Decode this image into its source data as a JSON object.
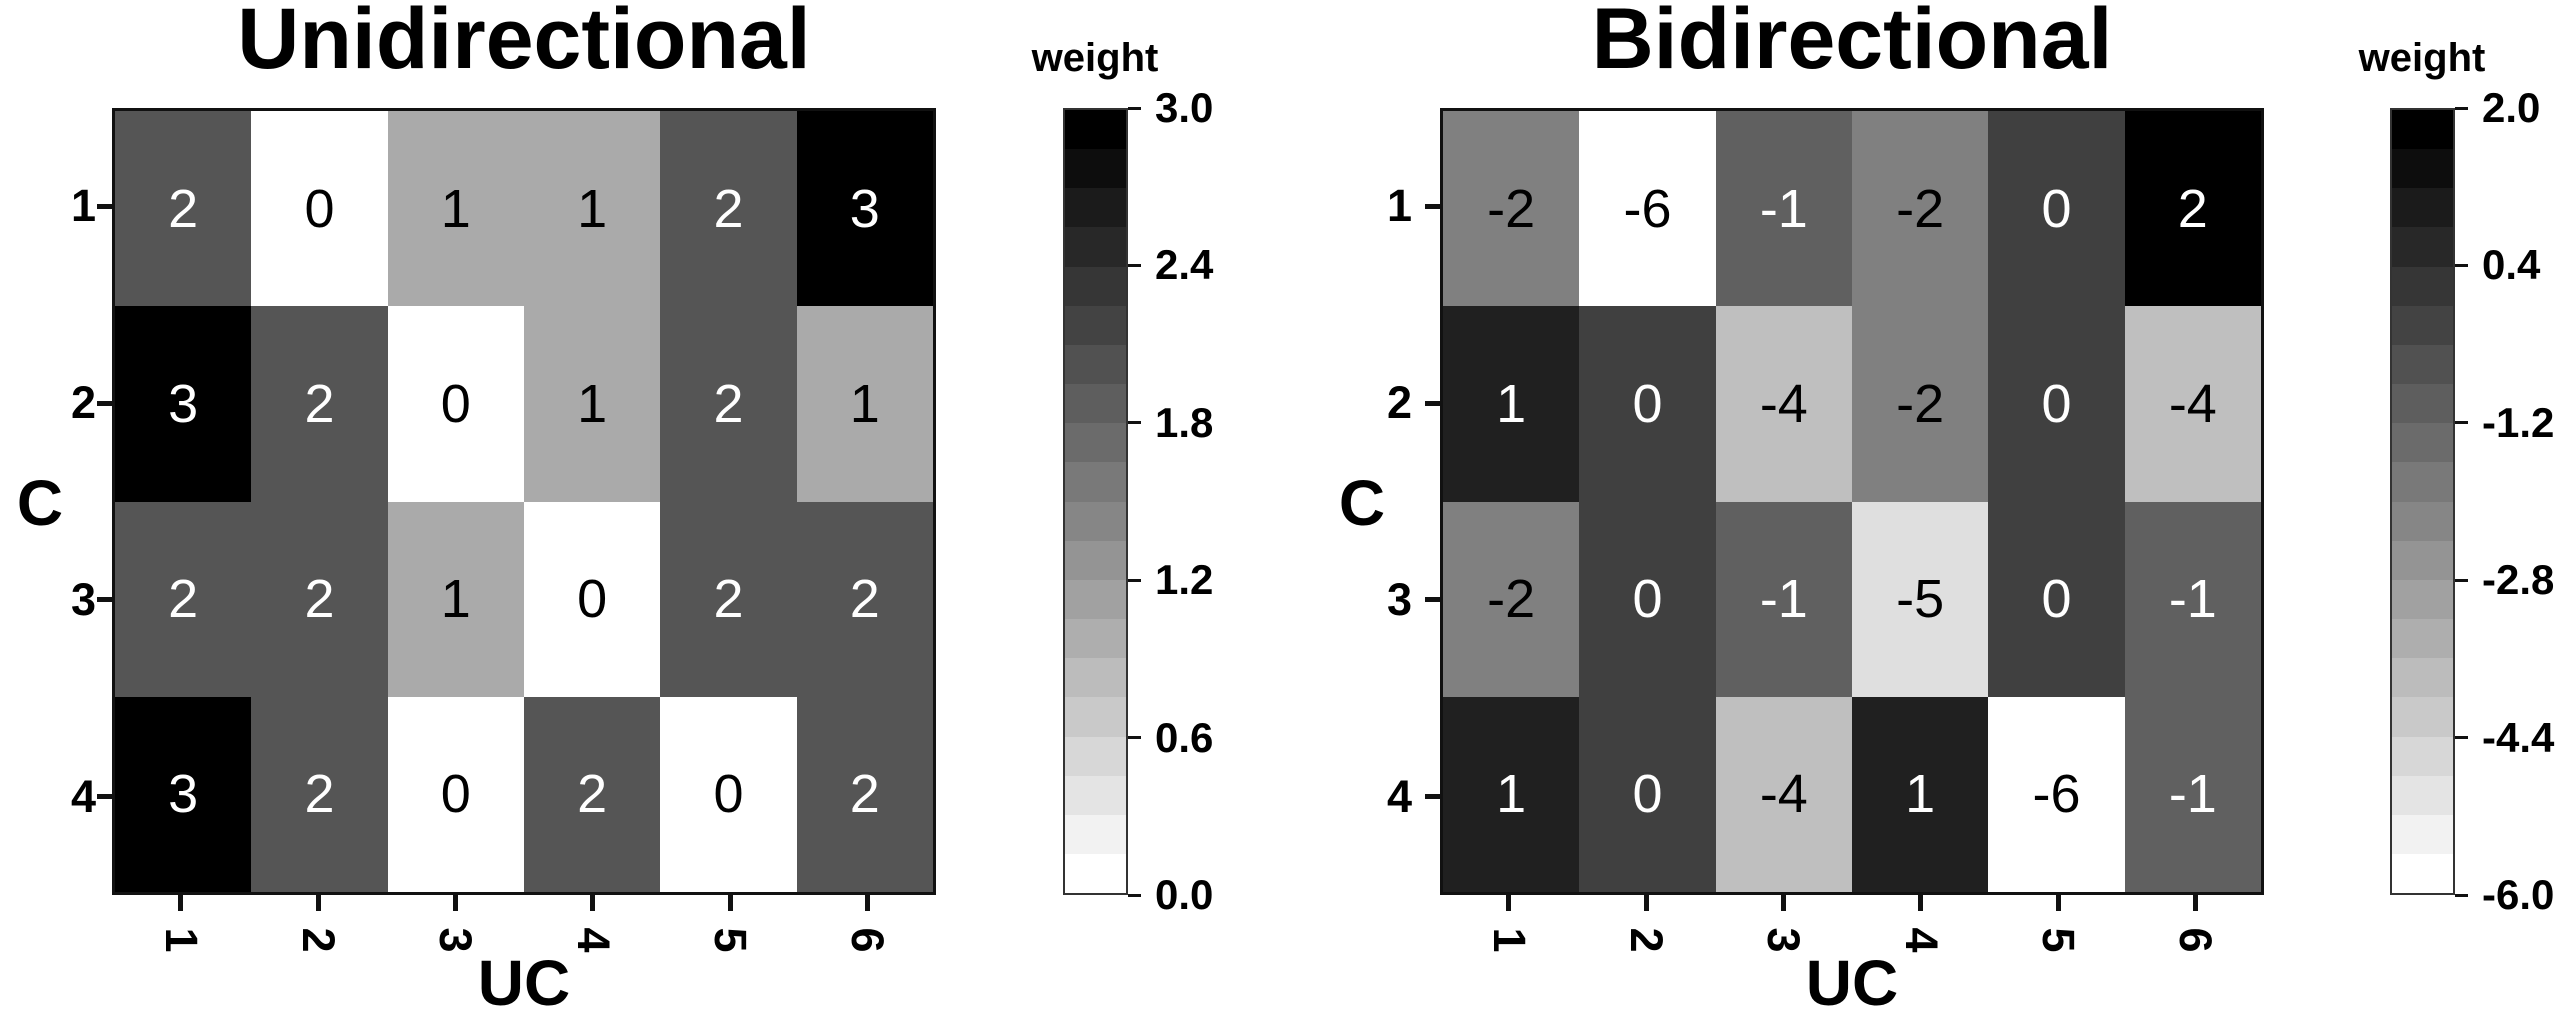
{
  "figure": {
    "background": "#ffffff"
  },
  "chart_data": [
    {
      "type": "heatmap",
      "title": "Unidirectional",
      "xlabel": "UC",
      "ylabel": "C",
      "x_tick_labels": [
        "1",
        "2",
        "3",
        "4",
        "5",
        "6"
      ],
      "y_tick_labels": [
        "1",
        "2",
        "3",
        "4"
      ],
      "values": [
        [
          2,
          0,
          1,
          1,
          2,
          3
        ],
        [
          3,
          2,
          0,
          1,
          2,
          1
        ],
        [
          2,
          2,
          1,
          0,
          2,
          2
        ],
        [
          3,
          2,
          0,
          2,
          0,
          2
        ]
      ],
      "value_range": [
        0,
        3
      ],
      "colorbar": {
        "title": "weight",
        "tick_labels": [
          "3.0",
          "2.4",
          "1.8",
          "1.2",
          "0.6",
          "0.0"
        ],
        "low_color": "#ffffff",
        "high_color": "#000000"
      }
    },
    {
      "type": "heatmap",
      "title": "Bidirectional",
      "xlabel": "UC",
      "ylabel": "C",
      "x_tick_labels": [
        "1",
        "2",
        "3",
        "4",
        "5",
        "6"
      ],
      "y_tick_labels": [
        "1",
        "2",
        "3",
        "4"
      ],
      "values": [
        [
          -2,
          -6,
          -1,
          -2,
          0,
          2
        ],
        [
          1,
          0,
          -4,
          -2,
          0,
          -4
        ],
        [
          -2,
          0,
          -1,
          -5,
          0,
          -1
        ],
        [
          1,
          0,
          -4,
          1,
          -6,
          -1
        ]
      ],
      "value_range": [
        -6,
        2
      ],
      "colorbar": {
        "title": "weight",
        "tick_labels": [
          "2.0",
          "0.4",
          "-1.2",
          "-2.8",
          "-4.4",
          "-6.0"
        ],
        "low_color": "#ffffff",
        "high_color": "#000000"
      }
    }
  ]
}
